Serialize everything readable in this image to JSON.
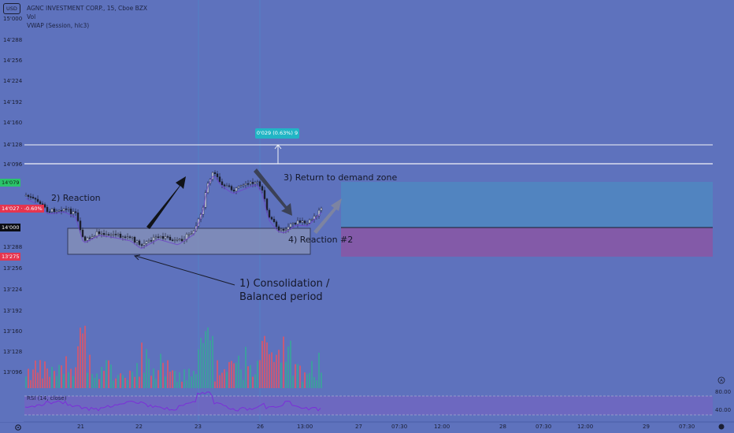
{
  "header": {
    "currency_button": "USD",
    "symbol_line": "AGNC INVESTMENT CORP., 15, Cboe BZX",
    "vol_label": "Vol",
    "vwap_label": "VWAP (Session, hlc3)"
  },
  "price_scale": [
    "15'000",
    "14'288",
    "14'256",
    "14'224",
    "14'192",
    "14'160",
    "14'128",
    "14'096",
    "13'288",
    "13'256",
    "13'224",
    "13'192",
    "13'160",
    "13'128",
    "13'096"
  ],
  "badges": {
    "green_value": "14'079",
    "red_value": "14'027 · -0.60%",
    "black_value": "14'000",
    "red_low": "13'275"
  },
  "measure_label": "0'029 (0.63%) 9",
  "annotations": {
    "reaction": "2) Reaction",
    "return_zone": "3) Return to demand zone",
    "reaction2": "4) Reaction #2",
    "consolidation_line1": "1) Consolidation /",
    "consolidation_line2": "Balanced period"
  },
  "rsi": {
    "label": "RSI (14, close)",
    "upper": "80.00",
    "lower": "40.00"
  },
  "time_axis": [
    "21",
    "22",
    "23",
    "26",
    "13:00",
    "27",
    "07:30",
    "12:00",
    "28",
    "07:30",
    "12:00",
    "29",
    "07:30"
  ],
  "colors": {
    "background": "#5e72bd",
    "up_volume": "#3aa39a",
    "down_volume": "#d9566b",
    "zone_blue": "#4f87c1",
    "zone_purple": "#8a56a4",
    "vwap": "#7b3fd0",
    "measure": "#21b5c5"
  },
  "icons": {
    "settings": "gear-icon",
    "auto_scale": "auto-scale-icon"
  }
}
